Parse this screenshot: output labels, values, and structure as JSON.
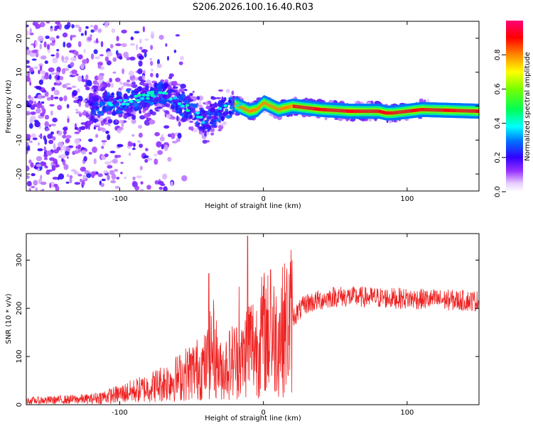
{
  "figure_title": "S206.2026.100.16.40.R03",
  "chart_data": [
    {
      "type": "heatmap",
      "title": "S206.2026.100.16.40.R03",
      "xlabel": "Height of straight line (km)",
      "ylabel": "Frequency (Hz)",
      "xlim": [
        -165,
        150
      ],
      "ylim": [
        -25,
        25
      ],
      "xticks": [
        -100,
        0,
        100
      ],
      "yticks": [
        -20,
        -10,
        0,
        10,
        20
      ],
      "colorbar": {
        "label": "Normalized spectral amplitude",
        "range": [
          0,
          1
        ],
        "ticks": [
          0.0,
          0.2,
          0.4,
          0.6,
          0.8
        ],
        "colormap": "rainbow (white-purple-blue-cyan-green-yellow-red-magenta)"
      },
      "ridge": {
        "description": "dominant Doppler frequency ridge vs height",
        "x": [
          -120,
          -100,
          -80,
          -70,
          -60,
          -50,
          -40,
          -30,
          -20,
          -10,
          -5,
          0,
          10,
          20,
          40,
          60,
          80,
          85,
          90,
          100,
          110,
          150
        ],
        "y": [
          0,
          1,
          3,
          4,
          1,
          -1,
          -5,
          -1,
          0.5,
          -1.5,
          -1,
          1,
          -1,
          0,
          -1,
          -1.5,
          -1.5,
          -2,
          -2,
          -1.5,
          -1,
          -1.5
        ]
      }
    },
    {
      "type": "line",
      "xlabel": "Height of straight line (km)",
      "ylabel": "SNR (10 * v/v)",
      "xlim": [
        -165,
        150
      ],
      "ylim": [
        0,
        355
      ],
      "xticks": [
        -100,
        0,
        100
      ],
      "yticks": [
        0,
        100,
        200,
        300
      ],
      "series": [
        {
          "name": "SNR",
          "color": "#ee2222",
          "envelope_x": [
            -165,
            -120,
            -100,
            -80,
            -60,
            -50,
            -40,
            -35,
            -30,
            -20,
            -15,
            -10,
            -5,
            0,
            10,
            20,
            30,
            50,
            100,
            150
          ],
          "envelope_mean": [
            8,
            12,
            22,
            35,
            55,
            70,
            80,
            120,
            70,
            95,
            90,
            130,
            120,
            150,
            140,
            180,
            210,
            225,
            220,
            215
          ],
          "peaks": [
            {
              "x": -38,
              "y": 272
            },
            {
              "x": -11,
              "y": 350
            },
            {
              "x": 5,
              "y": 280
            },
            {
              "x": -17,
              "y": 245
            }
          ]
        }
      ]
    }
  ],
  "colors": {
    "line": "#ee2222",
    "axis": "#000000",
    "background": "#ffffff"
  }
}
